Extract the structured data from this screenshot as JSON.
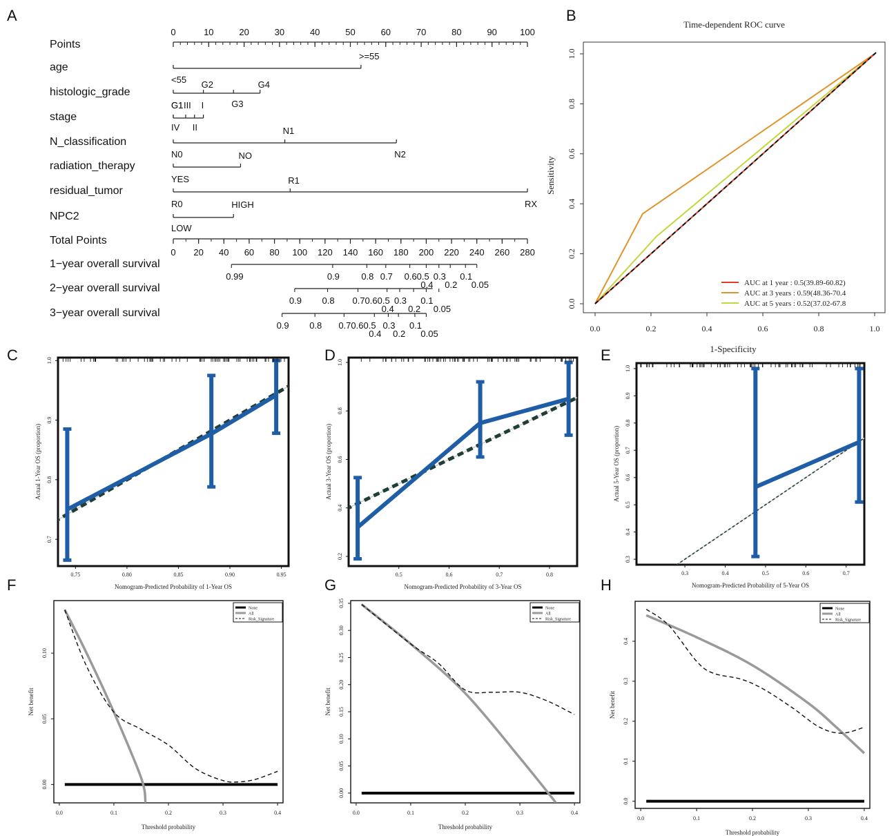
{
  "panel_letters": [
    "A",
    "B",
    "C",
    "D",
    "E",
    "F",
    "G",
    "H"
  ],
  "chart_data": [
    {
      "panel": "A",
      "type": "nomogram",
      "rows": [
        {
          "label": "Points",
          "kind": "scale",
          "ticks": [
            "0",
            "10",
            "20",
            "30",
            "40",
            "50",
            "60",
            "70",
            "80",
            "90",
            "100"
          ]
        },
        {
          "label": "age",
          "kind": "var",
          "levels": [
            {
              "text": "<55",
              "points": 0
            },
            {
              "text": ">=55",
              "points": 53
            }
          ]
        },
        {
          "label": "histologic_grade",
          "kind": "var",
          "levels": [
            {
              "text": "G1",
              "points": 0
            },
            {
              "text": "G2",
              "points": 8.5
            },
            {
              "text": "G3",
              "points": 17
            },
            {
              "text": "G4",
              "points": 24.5
            }
          ]
        },
        {
          "label": "stage",
          "kind": "var",
          "levels": [
            {
              "text": "G1",
              "points": 0
            },
            {
              "text": "III",
              "points": 3.5
            },
            {
              "text": "I",
              "points": 8.5
            },
            {
              "text": "IV",
              "points": 0
            },
            {
              "text": "II",
              "points": 6
            }
          ]
        },
        {
          "label": "N_classification",
          "kind": "var",
          "levels": [
            {
              "text": "N0",
              "points": 0
            },
            {
              "text": "N1",
              "points": 31.5
            },
            {
              "text": "N2",
              "points": 63
            }
          ]
        },
        {
          "label": "radiation_therapy",
          "kind": "var",
          "levels": [
            {
              "text": "YES",
              "points": 0
            },
            {
              "text": "NO",
              "points": 19
            }
          ]
        },
        {
          "label": "residual_tumor",
          "kind": "var",
          "levels": [
            {
              "text": "R0",
              "points": 0
            },
            {
              "text": "R1",
              "points": 33
            },
            {
              "text": "RX",
              "points": 100
            }
          ]
        },
        {
          "label": "NPC2",
          "kind": "var",
          "levels": [
            {
              "text": "LOW",
              "points": 0
            },
            {
              "text": "HIGH",
              "points": 17
            }
          ]
        },
        {
          "label": "Total Points",
          "kind": "scale",
          "ticks": [
            "0",
            "20",
            "40",
            "60",
            "80",
            "100",
            "120",
            "140",
            "160",
            "180",
            "200",
            "220",
            "240",
            "260",
            "280"
          ]
        },
        {
          "label": "1−year overall survival",
          "kind": "surv",
          "line": [
            46,
            240
          ],
          "top": [
            {
              "text": "0.99",
              "tp": 46
            },
            {
              "text": "0.9",
              "tp": 126
            },
            {
              "text": "0.8",
              "tp": 153
            },
            {
              "text": "0.7",
              "tp": 168
            },
            {
              "text": "0.60.5",
              "tp": 187
            },
            {
              "text": "0.3",
              "tp": 210
            },
            {
              "text": "0.1",
              "tp": 231
            }
          ],
          "bottom": [
            {
              "text": "0.4",
              "tp": 200
            },
            {
              "text": "0.2",
              "tp": 219
            },
            {
              "text": "0.05",
              "tp": 240
            }
          ]
        },
        {
          "label": "2−year overall survival",
          "kind": "surv",
          "line": [
            96,
            205
          ],
          "top": [
            {
              "text": "0.9",
              "tp": 96
            },
            {
              "text": "0.8",
              "tp": 122
            },
            {
              "text": "0.70.60.5",
              "tp": 146
            },
            {
              "text": "0.3",
              "tp": 179
            },
            {
              "text": "0.1",
              "tp": 200
            }
          ],
          "bottom": [
            {
              "text": "0.4",
              "tp": 169
            },
            {
              "text": "0.2",
              "tp": 190
            },
            {
              "text": "0.05",
              "tp": 210
            }
          ]
        },
        {
          "label": "3−year overall survival",
          "kind": "surv",
          "line": [
            86,
            200
          ],
          "top": [
            {
              "text": "0.9",
              "tp": 86
            },
            {
              "text": "0.8",
              "tp": 112
            },
            {
              "text": "0.70.60.5",
              "tp": 135
            },
            {
              "text": "0.3",
              "tp": 170
            },
            {
              "text": "0.1",
              "tp": 191
            }
          ],
          "bottom": [
            {
              "text": "0.4",
              "tp": 159
            },
            {
              "text": "0.2",
              "tp": 178
            },
            {
              "text": "0.05",
              "tp": 200
            }
          ]
        }
      ]
    },
    {
      "panel": "B",
      "type": "line",
      "title": "Time-dependent ROC curve",
      "xlabel": "1-Specificity",
      "ylabel": "Sensitivity",
      "xlim": [
        0,
        1
      ],
      "ylim": [
        0,
        1
      ],
      "ticks": [
        "0.0",
        "0.2",
        "0.4",
        "0.6",
        "0.8",
        "1.0"
      ],
      "legend_position": "bottom-right",
      "series": [
        {
          "name": "AUC at 1 year : 0.5(39.89-60.82)",
          "color": "#e23b2a",
          "x": [
            0,
            1
          ],
          "y": [
            0,
            1
          ]
        },
        {
          "name": "AUC at 3 years : 0.59(48.36-70.4",
          "color": "#e0932a",
          "x": [
            0,
            0.17,
            1
          ],
          "y": [
            0,
            0.36,
            1
          ]
        },
        {
          "name": "AUC at 5 years : 0.52(37.02-67.8",
          "color": "#c4d63a",
          "x": [
            0,
            0.22,
            1
          ],
          "y": [
            0,
            0.27,
            1
          ]
        }
      ]
    },
    {
      "panel": "C",
      "type": "line",
      "xlabel": "Nomogram-Predicted Probability of 1-Year OS",
      "ylabel": "Actual 1-Year OS (proportion)",
      "xlim": [
        0.733,
        0.957
      ],
      "ylim": [
        0.655,
        1.005
      ],
      "xticks": [
        "0.75",
        "0.80",
        "0.85",
        "0.90",
        "0.95"
      ],
      "yticks": [
        "0.7",
        "0.8",
        "0.9",
        "1.0"
      ],
      "calibration": {
        "x": [
          0.742,
          0.882,
          0.945
        ],
        "y": [
          0.75,
          0.877,
          0.942
        ],
        "lo": [
          0.665,
          0.788,
          0.878
        ],
        "hi": [
          0.885,
          0.975,
          1.0
        ]
      }
    },
    {
      "panel": "D",
      "type": "line",
      "xlabel": "Nomogram-Predicted Probability of 3-Year OS",
      "ylabel": "Actual 3-Year OS (proportion)",
      "xlim": [
        0.4,
        0.855
      ],
      "ylim": [
        0.16,
        1.02
      ],
      "xticks": [
        "0.5",
        "0.6",
        "0.7",
        "0.8"
      ],
      "yticks": [
        "0.2",
        "0.4",
        "0.6",
        "0.8",
        "1.0"
      ],
      "calibration": {
        "x": [
          0.418,
          0.662,
          0.838
        ],
        "y": [
          0.32,
          0.75,
          0.85
        ],
        "lo": [
          0.19,
          0.61,
          0.7
        ],
        "hi": [
          0.525,
          0.92,
          1.0
        ]
      }
    },
    {
      "panel": "E",
      "type": "line",
      "xlabel": "Nomogram-Predicted Probability of 5-Year OS",
      "ylabel": "Actual 5-Year OS (proportion)",
      "xlim": [
        0.18,
        0.745
      ],
      "ylim": [
        0.28,
        1.02
      ],
      "xticks": [
        "0.3",
        "0.4",
        "0.5",
        "0.6",
        "0.7"
      ],
      "yticks": [
        "0.3",
        "0.4",
        "0.5",
        "0.6",
        "0.7",
        "0.8",
        "0.9",
        "1.0"
      ],
      "calibration": {
        "x": [
          0.475,
          0.732
        ],
        "y": [
          0.565,
          0.73
        ],
        "lo": [
          0.31,
          0.51
        ],
        "hi": [
          1.0,
          1.0
        ]
      }
    },
    {
      "panel": "F",
      "type": "line",
      "xlabel": "Threshold probability",
      "ylabel": "Net benefit",
      "xlim": [
        -0.01,
        0.41
      ],
      "ylim": [
        -0.014,
        0.14
      ],
      "xticks": [
        "0.0",
        "0.1",
        "0.2",
        "0.3",
        "0.4"
      ],
      "yticks": [
        "0.00",
        "0.05",
        "0.10"
      ],
      "legend": [
        "None",
        "All",
        "Risk_Signature"
      ],
      "none": [
        0.01,
        0.4
      ],
      "all": {
        "x": [
          0.01,
          0.05,
          0.1,
          0.15,
          0.158
        ],
        "y": [
          0.133,
          0.1,
          0.055,
          0.005,
          -0.014
        ]
      },
      "model": {
        "x": [
          0.01,
          0.05,
          0.1,
          0.15,
          0.2,
          0.25,
          0.3,
          0.33,
          0.36,
          0.4
        ],
        "y": [
          0.133,
          0.09,
          0.055,
          0.042,
          0.03,
          0.012,
          0.003,
          0.002,
          0.004,
          0.01
        ]
      }
    },
    {
      "panel": "G",
      "type": "line",
      "xlabel": "Threshold probability",
      "ylabel": "Net benefit",
      "xlim": [
        -0.01,
        0.41
      ],
      "ylim": [
        -0.018,
        0.355
      ],
      "xticks": [
        "0.0",
        "0.1",
        "0.2",
        "0.3",
        "0.4"
      ],
      "yticks": [
        "0.00",
        "0.05",
        "0.10",
        "0.15",
        "0.20",
        "0.25",
        "0.30",
        "0.35"
      ],
      "legend": [
        "None",
        "All",
        "Risk_Signature"
      ],
      "none": [
        0.01,
        0.4
      ],
      "all": {
        "x": [
          0.01,
          0.1,
          0.2,
          0.3,
          0.36,
          0.365
        ],
        "y": [
          0.348,
          0.275,
          0.184,
          0.065,
          -0.01,
          -0.018
        ]
      },
      "model": {
        "x": [
          0.01,
          0.1,
          0.15,
          0.2,
          0.25,
          0.3,
          0.35,
          0.4
        ],
        "y": [
          0.348,
          0.275,
          0.24,
          0.19,
          0.186,
          0.186,
          0.17,
          0.145
        ]
      }
    },
    {
      "panel": "H",
      "type": "line",
      "xlabel": "Threshold probability",
      "ylabel": "Net benefit",
      "xlim": [
        -0.01,
        0.41
      ],
      "ylim": [
        -0.018,
        0.5
      ],
      "xticks": [
        "0.0",
        "0.1",
        "0.2",
        "0.3",
        "0.4"
      ],
      "yticks": [
        "0.0",
        "0.1",
        "0.2",
        "0.3",
        "0.4"
      ],
      "legend": [
        "None",
        "All",
        "Risk_Signature"
      ],
      "none": [
        0.01,
        0.4
      ],
      "all": {
        "x": [
          0.01,
          0.1,
          0.2,
          0.3,
          0.35,
          0.4
        ],
        "y": [
          0.465,
          0.41,
          0.34,
          0.245,
          0.185,
          0.12
        ]
      },
      "model": {
        "x": [
          0.01,
          0.05,
          0.1,
          0.13,
          0.18,
          0.22,
          0.27,
          0.32,
          0.36,
          0.4
        ],
        "y": [
          0.48,
          0.44,
          0.35,
          0.32,
          0.305,
          0.28,
          0.235,
          0.185,
          0.17,
          0.185
        ]
      }
    }
  ]
}
